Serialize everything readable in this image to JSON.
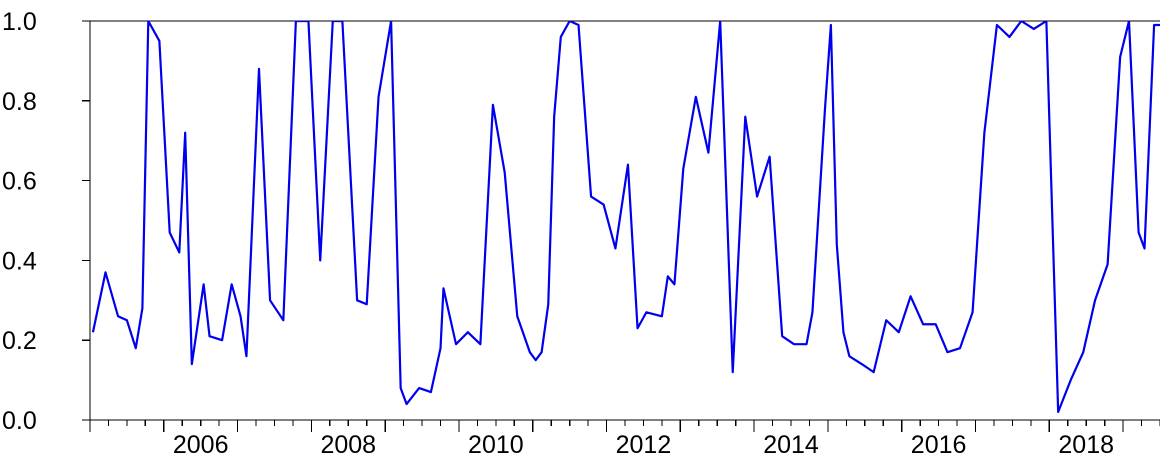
{
  "chart_data": {
    "type": "line",
    "title": "",
    "xlabel": "",
    "ylabel": "",
    "grid": false,
    "legend": "none",
    "line_color": "#0000ee",
    "xlim": [
      2005.0,
      2019.5
    ],
    "ylim": [
      0.0,
      1.0
    ],
    "x_ticks": [
      2006,
      2008,
      2010,
      2012,
      2014,
      2016,
      2018
    ],
    "x_tick_labels": [
      "2006",
      "2008",
      "2010",
      "2012",
      "2014",
      "2016",
      "2018"
    ],
    "y_ticks": [
      0.0,
      0.2,
      0.4,
      0.6,
      0.8,
      1.0
    ],
    "y_tick_labels": [
      "0.0",
      "0.2",
      "0.4",
      "0.6",
      "0.8",
      "1.0"
    ],
    "series": [
      {
        "x": [
          2005.04,
          2005.21,
          2005.38,
          2005.5,
          2005.62,
          2005.71,
          2005.79,
          2005.94,
          2006.08,
          2006.21,
          2006.29,
          2006.38,
          2006.54,
          2006.62,
          2006.79,
          2006.92,
          2007.04,
          2007.12,
          2007.29,
          2007.44,
          2007.62,
          2007.79,
          2007.96,
          2008.12,
          2008.29,
          2008.42,
          2008.62,
          2008.75,
          2008.91,
          2009.08,
          2009.21,
          2009.29,
          2009.46,
          2009.62,
          2009.75,
          2009.79,
          2009.96,
          2010.12,
          2010.29,
          2010.46,
          2010.62,
          2010.79,
          2010.96,
          2011.04,
          2011.12,
          2011.21,
          2011.29,
          2011.38,
          2011.5,
          2011.62,
          2011.79,
          2011.96,
          2012.12,
          2012.29,
          2012.42,
          2012.54,
          2012.75,
          2012.83,
          2012.92,
          2013.04,
          2013.21,
          2013.38,
          2013.54,
          2013.71,
          2013.88,
          2014.04,
          2014.21,
          2014.38,
          2014.54,
          2014.71,
          2014.79,
          2014.96,
          2015.04,
          2015.12,
          2015.21,
          2015.29,
          2015.46,
          2015.62,
          2015.79,
          2015.96,
          2016.12,
          2016.29,
          2016.46,
          2016.62,
          2016.79,
          2016.96,
          2017.12,
          2017.29,
          2017.46,
          2017.62,
          2017.79,
          2017.96,
          2018.12,
          2018.29,
          2018.46,
          2018.62,
          2018.79,
          2018.96,
          2019.08,
          2019.21,
          2019.29,
          2019.42,
          2019.5
        ],
        "y": [
          0.22,
          0.37,
          0.26,
          0.25,
          0.18,
          0.28,
          1.0,
          0.95,
          0.47,
          0.42,
          0.72,
          0.14,
          0.34,
          0.21,
          0.2,
          0.34,
          0.26,
          0.16,
          0.88,
          0.3,
          0.25,
          1.0,
          1.0,
          0.4,
          1.0,
          1.0,
          0.3,
          0.29,
          0.81,
          1.0,
          0.08,
          0.04,
          0.08,
          0.07,
          0.18,
          0.33,
          0.19,
          0.22,
          0.19,
          0.79,
          0.62,
          0.26,
          0.17,
          0.15,
          0.17,
          0.29,
          0.76,
          0.96,
          1.0,
          0.99,
          0.56,
          0.54,
          0.43,
          0.64,
          0.23,
          0.27,
          0.26,
          0.36,
          0.34,
          0.63,
          0.81,
          0.67,
          1.0,
          0.12,
          0.76,
          0.56,
          0.66,
          0.21,
          0.19,
          0.19,
          0.27,
          0.78,
          0.99,
          0.44,
          0.22,
          0.16,
          0.14,
          0.12,
          0.25,
          0.22,
          0.31,
          0.24,
          0.24,
          0.17,
          0.18,
          0.27,
          0.72,
          0.99,
          0.96,
          1.0,
          0.98,
          1.0,
          0.02,
          0.1,
          0.17,
          0.3,
          0.39,
          0.91,
          1.0,
          0.47,
          0.43,
          0.99,
          0.99
        ]
      }
    ]
  }
}
